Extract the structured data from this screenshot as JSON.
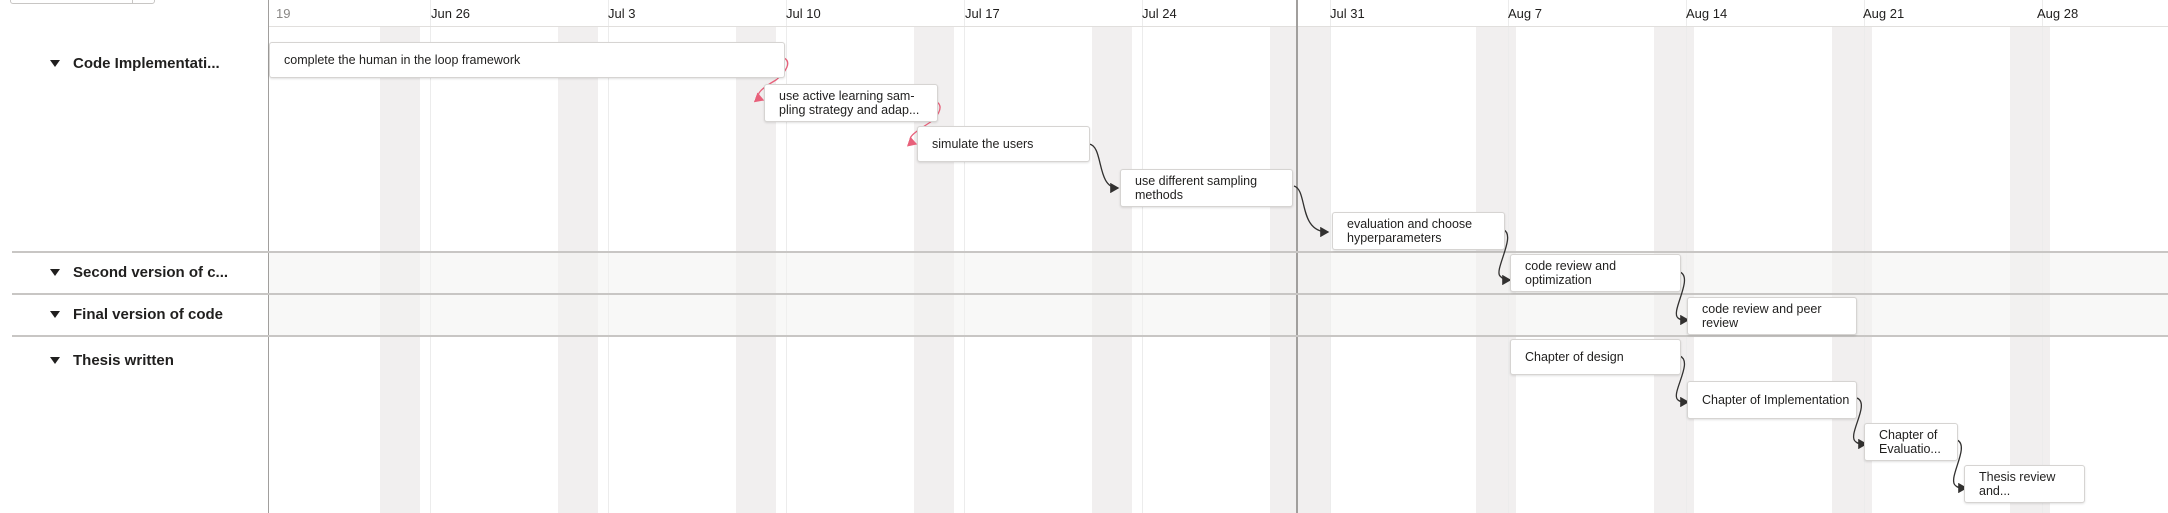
{
  "timeline": {
    "first_date_partial": "19",
    "dates": [
      "Jun 26",
      "Jul 3",
      "Jul 10",
      "Jul 17",
      "Jul 24",
      "Jul 31",
      "Aug 7",
      "Aug 14",
      "Aug 21",
      "Aug 28"
    ]
  },
  "groups": [
    {
      "label": "Code Implementati..."
    },
    {
      "label": "Second version of c..."
    },
    {
      "label": "Final version of code"
    },
    {
      "label": "Thesis written"
    }
  ],
  "tasks": [
    {
      "label": "complete the human in the loop framework"
    },
    {
      "label": "use active learning sam-pling strategy and adap..."
    },
    {
      "label": "simulate the users"
    },
    {
      "label": "use different sampling methods"
    },
    {
      "label": "evaluation and choose hyperparameters"
    },
    {
      "label": "code review and optimization"
    },
    {
      "label": "code review and peer review"
    },
    {
      "label": "Chapter of design"
    },
    {
      "label": "Chapter of Implementation"
    },
    {
      "label": "Chapter of Evaluatio..."
    },
    {
      "label": "Thesis review and..."
    }
  ],
  "colors": {
    "link_normal": "#323130",
    "link_conflict": "#e8607a",
    "weekend_band": "#f1efef"
  }
}
